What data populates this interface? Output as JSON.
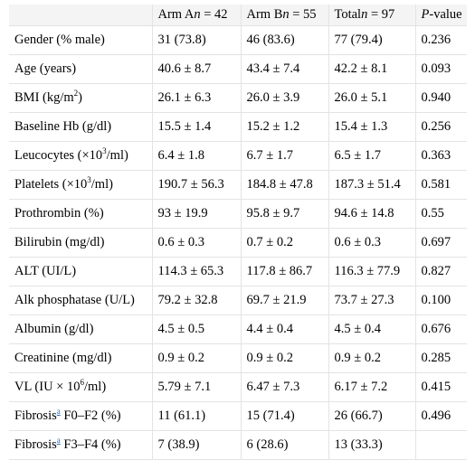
{
  "header": {
    "col0": "",
    "arm_a": {
      "prefix": "Arm A",
      "n": "n",
      "suffix": " = 42"
    },
    "arm_b": {
      "prefix": "Arm B",
      "n": "n",
      "suffix": " = 55"
    },
    "total": {
      "prefix": "Total",
      "n": "n",
      "suffix": " = 97"
    },
    "pvalue": {
      "p": "P",
      "suffix": "-value"
    }
  },
  "rows": [
    {
      "label": "Gender (% male)",
      "a": "31 (73.8)",
      "b": "46 (83.6)",
      "t": "77 (79.4)",
      "p": "0.236"
    },
    {
      "label": "Age (years)",
      "a": "40.6 ± 8.7",
      "b": "43.4 ± 7.4",
      "t": "42.2 ± 8.1",
      "p": "0.093"
    },
    {
      "label_pre": "BMI (kg/m",
      "label_sup": "2",
      "label_post": ")",
      "a": "26.1 ± 6.3",
      "b": "26.0 ± 3.9",
      "t": "26.0 ± 5.1",
      "p": "0.940"
    },
    {
      "label": "Baseline Hb (g/dl)",
      "a": "15.5 ± 1.4",
      "b": "15.2 ± 1.2",
      "t": "15.4 ± 1.3",
      "p": "0.256"
    },
    {
      "label_pre": "Leucocytes (×10",
      "label_sup": "3",
      "label_post": "/ml)",
      "a": "6.4 ± 1.8",
      "b": "6.7 ± 1.7",
      "t": "6.5 ± 1.7",
      "p": "0.363"
    },
    {
      "label_pre": "Platelets (×10",
      "label_sup": "3",
      "label_post": "/ml)",
      "a": "190.7 ± 56.3",
      "b": "184.8 ± 47.8",
      "t": "187.3 ± 51.4",
      "p": "0.581"
    },
    {
      "label": "Prothrombin (%)",
      "a": "93 ± 19.9",
      "b": "95.8 ± 9.7",
      "t": "94.6 ± 14.8",
      "p": "0.55"
    },
    {
      "label": "Bilirubin (mg/dl)",
      "a": "0.6 ± 0.3",
      "b": "0.7 ± 0.2",
      "t": "0.6 ± 0.3",
      "p": "0.697"
    },
    {
      "label": "ALT (UI/L)",
      "a": "114.3 ± 65.3",
      "b": "117.8 ± 86.7",
      "t": "116.3 ± 77.9",
      "p": "0.827"
    },
    {
      "label": "Alk phosphatase (U/L)",
      "a": "79.2 ± 32.8",
      "b": "69.7 ± 21.9",
      "t": "73.7 ± 27.3",
      "p": "0.100"
    },
    {
      "label": "Albumin (g/dl)",
      "a": "4.5 ± 0.5",
      "b": "4.4 ± 0.4",
      "t": "4.5 ± 0.4",
      "p": "0.676"
    },
    {
      "label": "Creatinine (mg/dl)",
      "a": "0.9 ± 0.2",
      "b": "0.9 ± 0.2",
      "t": "0.9 ± 0.2",
      "p": "0.285"
    },
    {
      "label_pre": "VL (IU × 10",
      "label_sup": "6",
      "label_post": "/ml)",
      "a": "5.79 ± 7.1",
      "b": "6.47 ± 7.3",
      "t": "6.17 ± 7.2",
      "p": "0.415"
    },
    {
      "label_pre": "Fibrosis",
      "label_fn": "a",
      "label_post": " F0–F2 (%)",
      "a": "11 (61.1)",
      "b": "15 (71.4)",
      "t": "26 (66.7)",
      "p": "0.496"
    },
    {
      "label_pre": "Fibrosis",
      "label_fn": "a",
      "label_post": " F3–F4 (%)",
      "a": "7 (38.9)",
      "b": "6 (28.6)",
      "t": "13 (33.3)",
      "p": ""
    }
  ]
}
